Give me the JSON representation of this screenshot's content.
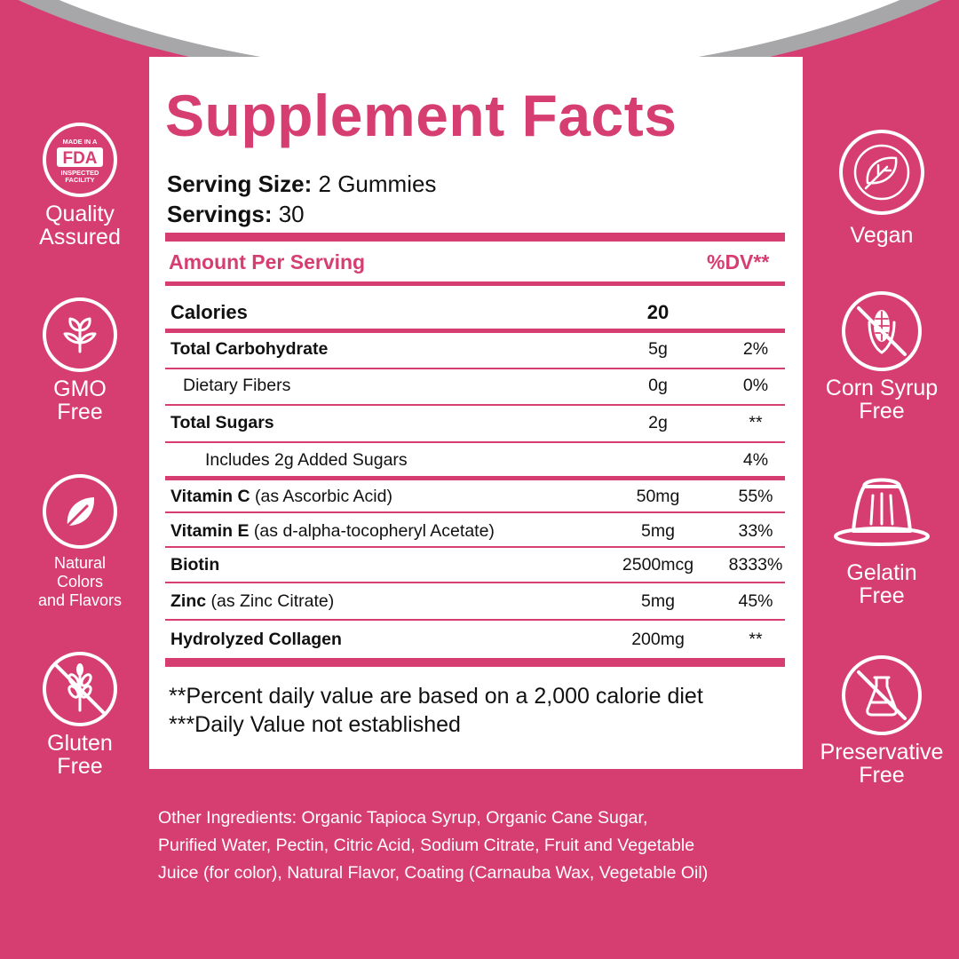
{
  "title": "Supplement Facts",
  "serving": {
    "size_label": "Serving Size:",
    "size_value": " 2 Gummies",
    "servings_label": "Servings:",
    "servings_value": " 30"
  },
  "table": {
    "header_left": "Amount Per Serving",
    "header_right": "%DV**",
    "rows": [
      {
        "name_bold": "Calories",
        "name_rest": "",
        "amount": "20",
        "dv": ""
      },
      {
        "name_bold": "Total Carbohydrate",
        "name_rest": "",
        "amount": "5g",
        "dv": "2%"
      },
      {
        "name_bold": "",
        "name_rest": "Dietary Fibers",
        "amount": "0g",
        "dv": "0%"
      },
      {
        "name_bold": "Total Sugars",
        "name_rest": "",
        "amount": "2g",
        "dv": "**"
      },
      {
        "name_bold": "",
        "name_rest": "Includes 2g Added Sugars",
        "amount": "",
        "dv": "4%"
      },
      {
        "name_bold": "Vitamin C",
        "name_rest": " (as Ascorbic Acid)",
        "amount": "50mg",
        "dv": "55%"
      },
      {
        "name_bold": "Vitamin E",
        "name_rest": " (as d-alpha-tocopheryl Acetate)",
        "amount": "5mg",
        "dv": "33%"
      },
      {
        "name_bold": "Biotin",
        "name_rest": "",
        "amount": "2500mcg",
        "dv": "8333%"
      },
      {
        "name_bold": "Zinc",
        "name_rest": " (as Zinc Citrate)",
        "amount": "5mg",
        "dv": "45%"
      },
      {
        "name_bold": "Hydrolyzed Collagen",
        "name_rest": "",
        "amount": "200mg",
        "dv": "**"
      }
    ]
  },
  "footnotes": [
    "**Percent daily value are based on a 2,000 calorie diet",
    "***Daily Value not established"
  ],
  "badges_left": [
    {
      "icon": "fda-icon",
      "icon_text": [
        "MADE IN A",
        "FDA",
        "INSPECTED",
        "FACILITY"
      ],
      "label": [
        "Quality",
        "Assured"
      ]
    },
    {
      "icon": "sprout-icon",
      "label": [
        "GMO",
        "Free"
      ]
    },
    {
      "icon": "leaf-icon",
      "label": [
        "Natural",
        "Colors",
        "and Flavors"
      ]
    },
    {
      "icon": "no-wheat-icon",
      "label": [
        "Gluten",
        "Free"
      ]
    }
  ],
  "badges_right": [
    {
      "icon": "vegan-leaf-icon",
      "label": [
        "Vegan"
      ]
    },
    {
      "icon": "no-corn-icon",
      "label": [
        "Corn Syrup",
        "Free"
      ]
    },
    {
      "icon": "gelatin-icon",
      "label": [
        "Gelatin",
        "Free"
      ]
    },
    {
      "icon": "no-preservative-icon",
      "label": [
        "Preservative",
        "Free"
      ]
    }
  ],
  "other_ingredients": [
    "Other Ingredients: Organic Tapioca Syrup, Organic Cane Sugar,",
    "Purified Water, Pectin, Citric Acid, Sodium Citrate, Fruit and Vegetable",
    "Juice (for color), Natural Flavor, Coating (Carnauba Wax, Vegetable Oil)"
  ],
  "colors": {
    "accent": "#d63e72",
    "arc_gray": "#a7a6a8",
    "panel": "#ffffff",
    "text": "#111111"
  }
}
